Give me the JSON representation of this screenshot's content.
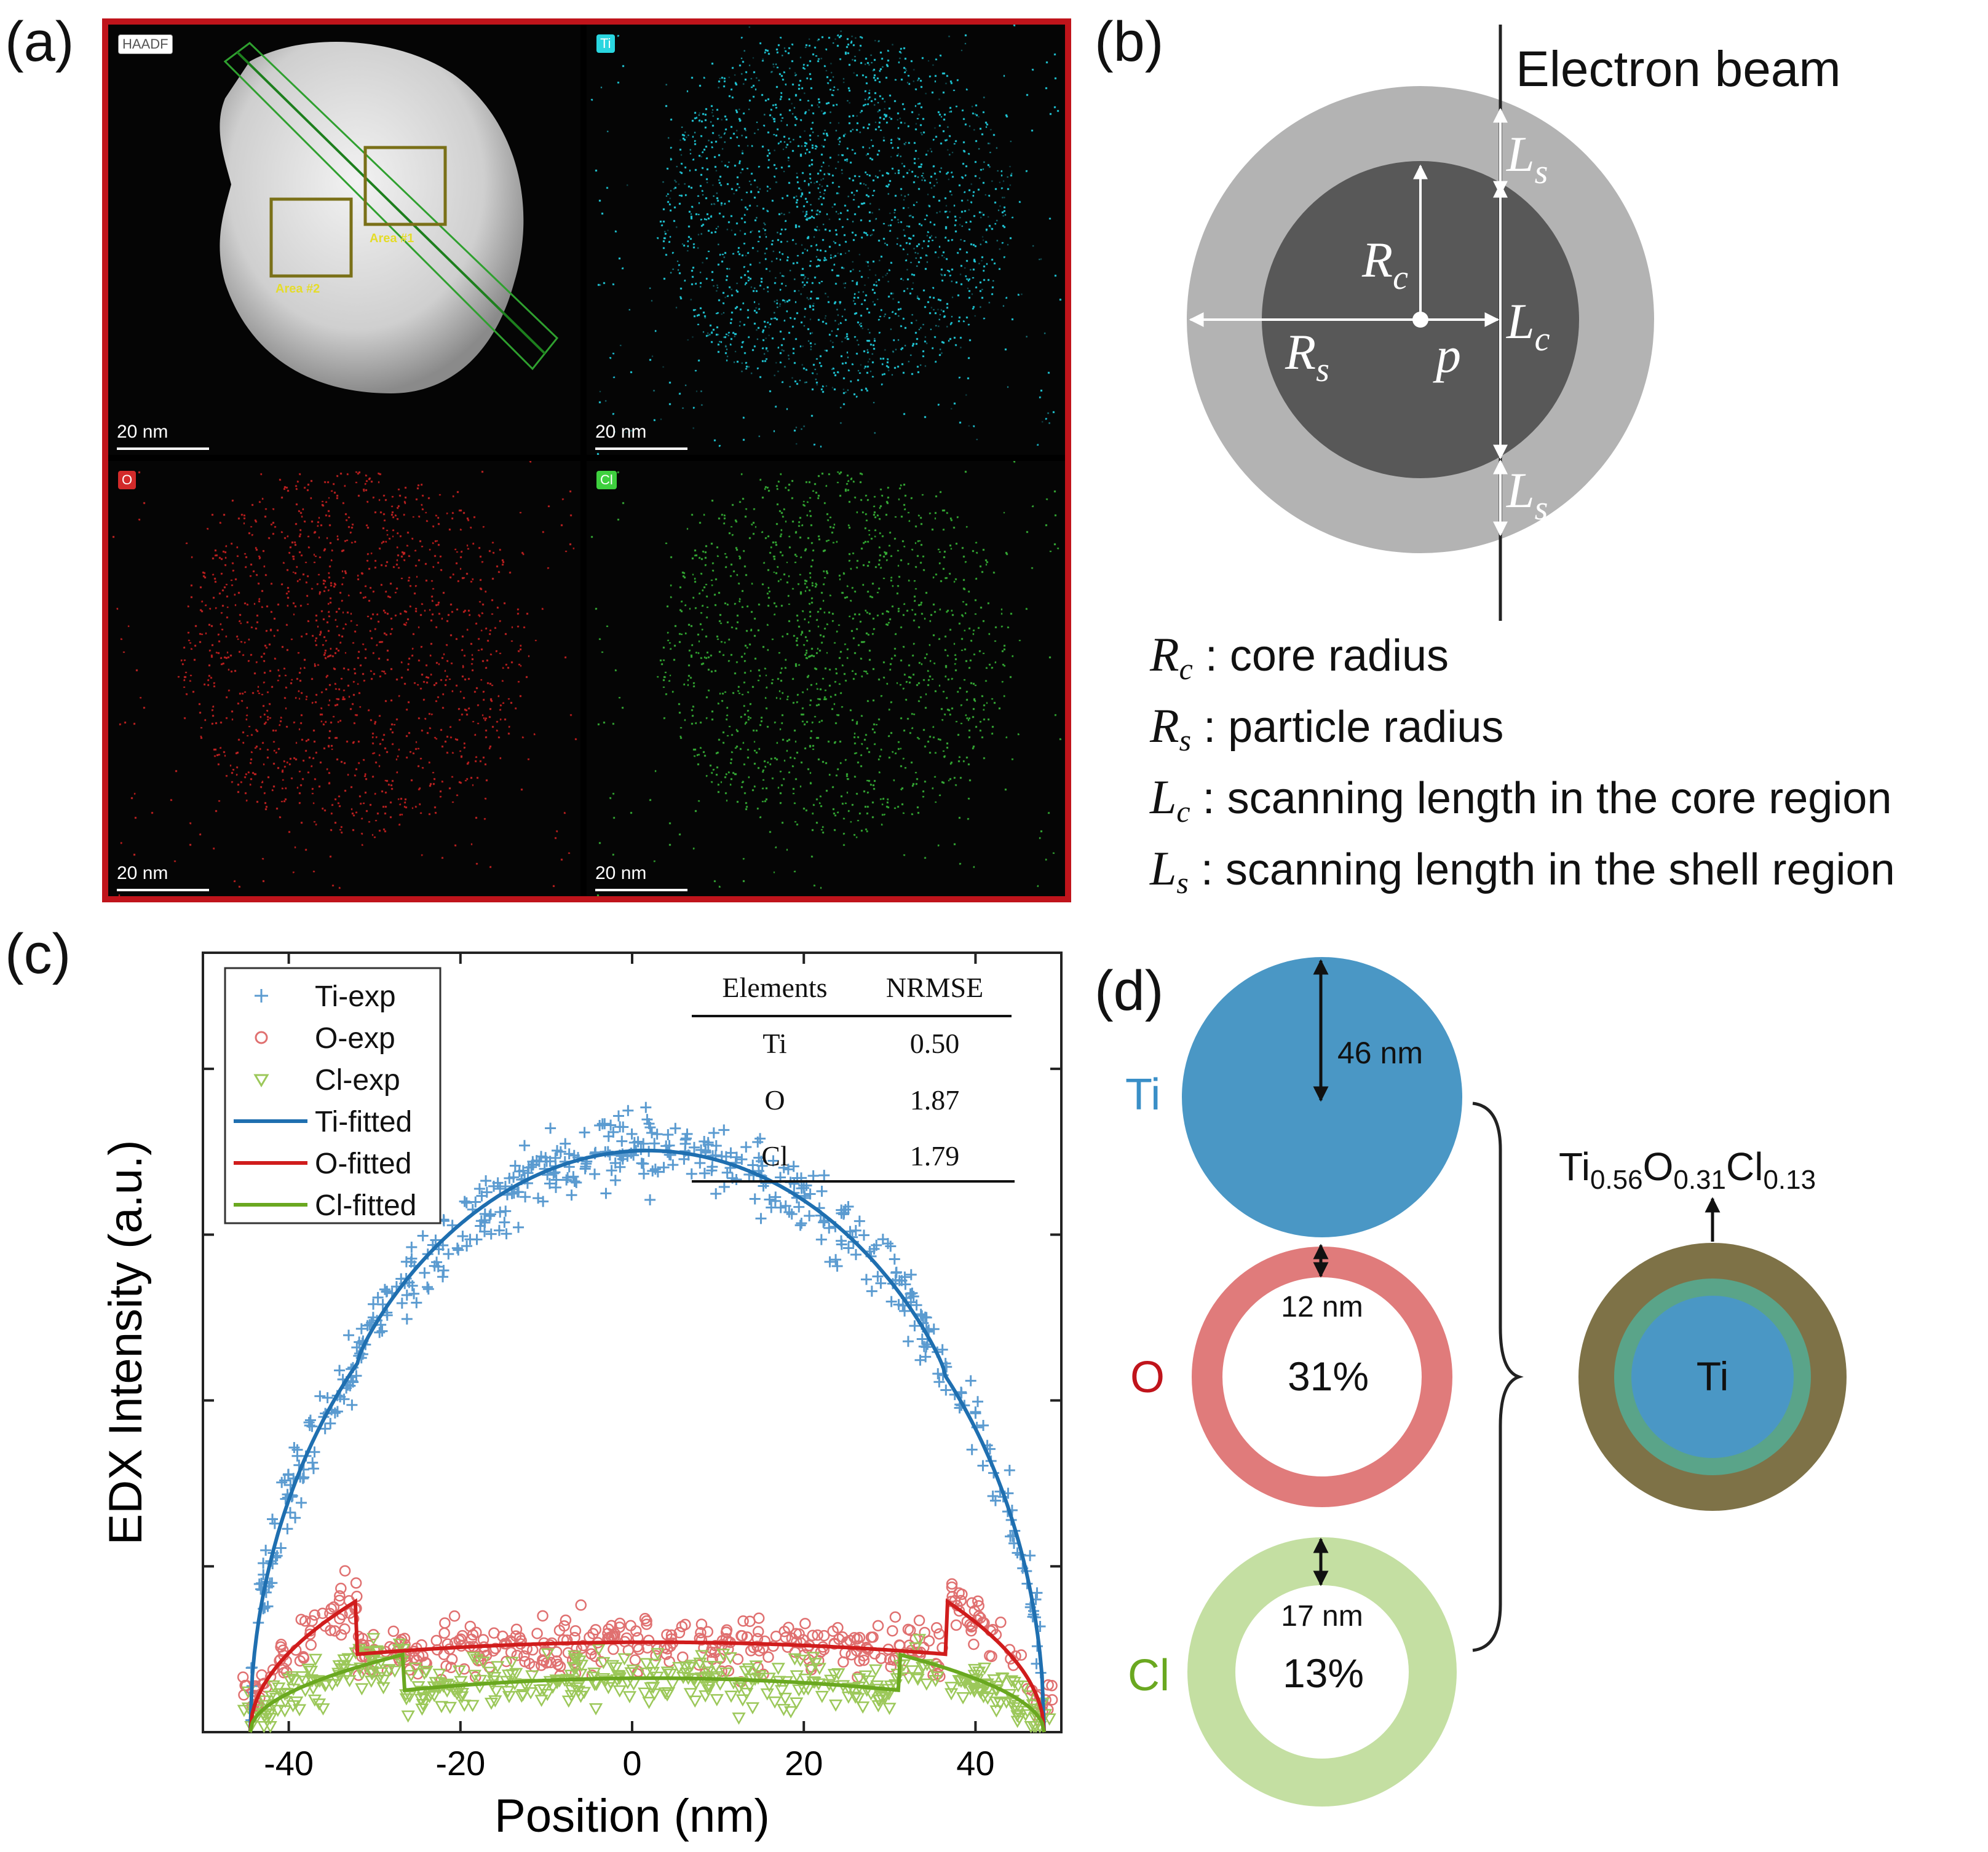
{
  "panels": {
    "a": "(a)",
    "b": "(b)",
    "c": "(c)",
    "d": "(d)"
  },
  "panel_a": {
    "maps": [
      {
        "tag": "HAADF",
        "scale": "20 nm",
        "color": "#ffffff"
      },
      {
        "tag": "Ti",
        "scale": "20 nm",
        "color": "#29d6e0"
      },
      {
        "tag": "O",
        "scale": "20 nm",
        "color": "#d22a2a"
      },
      {
        "tag": "Cl",
        "scale": "20 nm",
        "color": "#3ed03e"
      }
    ],
    "areas": [
      "Area #1",
      "Area #2"
    ]
  },
  "panel_b": {
    "beam_label": "Electron beam",
    "symbols": {
      "Rc": "R",
      "Rc_sub": "c",
      "Rs": "R",
      "Rs_sub": "s",
      "Lc": "L",
      "Lc_sub": "c",
      "Ls": "L",
      "Ls_sub": "s",
      "p": "p"
    },
    "definitions": [
      {
        "sym": "R",
        "sub": "c",
        "text": ": core radius"
      },
      {
        "sym": "R",
        "sub": "s",
        "text": ": particle radius"
      },
      {
        "sym": "L",
        "sub": "c",
        "text": ": scanning length in the core region"
      },
      {
        "sym": "L",
        "sub": "s",
        "text": ": scanning length in the shell region"
      }
    ]
  },
  "chart_data": {
    "type": "scatter",
    "xlabel": "Position (nm)",
    "ylabel": "EDX Intensity (a.u.)",
    "xlim": [
      -50,
      50
    ],
    "ylim": [
      0,
      1.3
    ],
    "xticks": [
      "-40",
      "-20",
      "0",
      "20",
      "40"
    ],
    "xtick_values": [
      -40,
      -20,
      0,
      20,
      40
    ],
    "legend": [
      "Ti-exp",
      "O-exp",
      "Cl-exp",
      "Ti-fitted",
      "O-fitted",
      "Cl-fitted"
    ],
    "colors": {
      "Ti": "#1f6fb0",
      "O": "#d01c1c",
      "Cl": "#6aa820",
      "Ti_exp": "#5b9bd0",
      "O_exp": "#e07070",
      "Cl_exp": "#9cc85a"
    },
    "fitted": {
      "Ti": {
        "left": -44.5,
        "right": 48,
        "core_left": -32,
        "core_right": 36.5,
        "peak": 0.9,
        "step": 0.62
      },
      "O": {
        "left": -44.5,
        "right": 48,
        "core_left": -32,
        "core_right": 36.5,
        "level": 0.13,
        "edge": 0.22
      },
      "Cl": {
        "left": -44.5,
        "right": 48,
        "core_left": -26.5,
        "core_right": 31,
        "level": 0.07,
        "edge": 0.13
      }
    },
    "table": {
      "headers": [
        "Elements",
        "NRMSE"
      ],
      "rows": [
        [
          "Ti",
          "0.50"
        ],
        [
          "O",
          "1.87"
        ],
        [
          "Cl",
          "1.79"
        ]
      ]
    }
  },
  "panel_d": {
    "labels": {
      "Ti": "Ti",
      "O": "O",
      "Cl": "Cl"
    },
    "dims": {
      "Ti": "46 nm",
      "O": "12 nm",
      "Cl": "17 nm"
    },
    "percents": {
      "O": "31%",
      "Cl": "13%"
    },
    "formula": {
      "el1": "Ti",
      "n1": "0.56",
      "el2": "O",
      "n2": "0.31",
      "el3": "Cl",
      "n3": "0.13"
    },
    "core_label": "Ti",
    "colors": {
      "Ti": "#4a97c5",
      "O": "#e07b7b",
      "Cl": "#c4dfa2",
      "shell_outer": "#7e7247",
      "shell_inner": "#5aa489",
      "Ti_text": "#3a8fc7",
      "O_text": "#c0141b",
      "Cl_text": "#6aa820"
    }
  }
}
